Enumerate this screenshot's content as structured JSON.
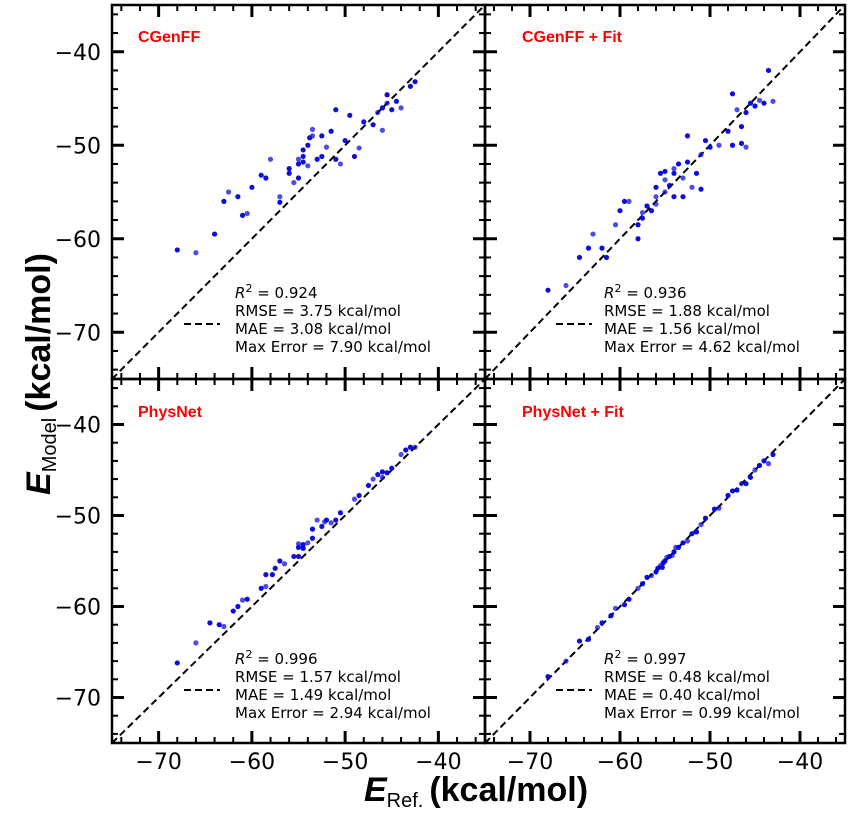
{
  "chart_data": {
    "type": "scatter",
    "xlabel": {
      "symbol": "E",
      "subscript": "Ref.",
      "unit": "(kcal/mol)"
    },
    "ylabel": {
      "symbol": "E",
      "subscript": "Model",
      "unit": "(kcal/mol)"
    },
    "xlim": [
      -75,
      -35
    ],
    "ylim": [
      -75,
      -35
    ],
    "x_ticks": [
      -70,
      -60,
      -50,
      -40
    ],
    "y_ticks": [
      -70,
      -60,
      -50,
      -40
    ],
    "reference_line": "y = x (dashed)",
    "point_color": "#0000e0",
    "title_color": "#ff0000",
    "panels": [
      {
        "title": "CGenFF",
        "stats": {
          "r2_label": "R",
          "r2_exp": "2",
          "r2_value": " = 0.924",
          "rmse": "RMSE = 3.75 kcal/mol",
          "mae": "MAE = 3.08 kcal/mol",
          "max_error": "Max Error = 7.90 kcal/mol"
        },
        "points": [
          [
            -68,
            -61.2
          ],
          [
            -66,
            -61.5
          ],
          [
            -64,
            -59.5
          ],
          [
            -63,
            -56
          ],
          [
            -62.5,
            -55
          ],
          [
            -61.5,
            -55.5
          ],
          [
            -61,
            -57.5
          ],
          [
            -60.5,
            -57.3
          ],
          [
            -60,
            -54.5
          ],
          [
            -59,
            -53.2
          ],
          [
            -58,
            -51.5
          ],
          [
            -58.5,
            -53.5
          ],
          [
            -57,
            -56.1
          ],
          [
            -57,
            -55.5
          ],
          [
            -56,
            -53
          ],
          [
            -56,
            -52.5
          ],
          [
            -55.5,
            -54
          ],
          [
            -55,
            -53.5
          ],
          [
            -55,
            -52
          ],
          [
            -55,
            -51.5
          ],
          [
            -54.5,
            -51.2
          ],
          [
            -54.5,
            -50.5
          ],
          [
            -54,
            -52.2
          ],
          [
            -54,
            -50
          ],
          [
            -53.8,
            -49.2
          ],
          [
            -53.5,
            -48.3
          ],
          [
            -53,
            -51.5
          ],
          [
            -52.5,
            -51.2
          ],
          [
            -52,
            -50.2
          ],
          [
            -51.5,
            -48.5
          ],
          [
            -51,
            -51.5
          ],
          [
            -50.5,
            -52
          ],
          [
            -50,
            -49.5
          ],
          [
            -49.5,
            -46.8
          ],
          [
            -48.5,
            -50.3
          ],
          [
            -48,
            -47.5
          ],
          [
            -47,
            -47.8
          ],
          [
            -46.5,
            -46.5
          ],
          [
            -46,
            -46
          ],
          [
            -45.5,
            -44.6
          ],
          [
            -45.5,
            -45.5
          ],
          [
            -45,
            -46.2
          ],
          [
            -44.5,
            -45.3
          ],
          [
            -44,
            -46
          ],
          [
            -43,
            -43.7
          ],
          [
            -42.5,
            -43.2
          ],
          [
            -46,
            -48.4
          ],
          [
            -51,
            -46.2
          ],
          [
            -52.5,
            -49
          ],
          [
            -53.5,
            -49
          ],
          [
            -49,
            -51.2
          ],
          [
            -54.5,
            -51.8
          ]
        ]
      },
      {
        "title": "CGenFF + Fit",
        "stats": {
          "r2_label": "R",
          "r2_exp": "2",
          "r2_value": " = 0.936",
          "rmse": "RMSE = 1.88 kcal/mol",
          "mae": "MAE = 1.56 kcal/mol",
          "max_error": "Max Error = 4.62 kcal/mol"
        },
        "points": [
          [
            -68,
            -65.5
          ],
          [
            -66,
            -65
          ],
          [
            -64.5,
            -62
          ],
          [
            -63.5,
            -61
          ],
          [
            -63,
            -59.5
          ],
          [
            -62,
            -61
          ],
          [
            -61.5,
            -62
          ],
          [
            -60.5,
            -58.5
          ],
          [
            -60,
            -57
          ],
          [
            -59.5,
            -56
          ],
          [
            -59,
            -56
          ],
          [
            -58,
            -58.5
          ],
          [
            -58,
            -60
          ],
          [
            -57.5,
            -57.2
          ],
          [
            -57,
            -56.5
          ],
          [
            -56.5,
            -57
          ],
          [
            -56,
            -55.5
          ],
          [
            -56,
            -54.5
          ],
          [
            -55.5,
            -53
          ],
          [
            -55,
            -55
          ],
          [
            -55,
            -52.8
          ],
          [
            -54.5,
            -54.3
          ],
          [
            -54,
            -52.5
          ],
          [
            -54,
            -55.5
          ],
          [
            -53.5,
            -52
          ],
          [
            -53,
            -53.5
          ],
          [
            -53,
            -55.5
          ],
          [
            -52.5,
            -51.8
          ],
          [
            -52,
            -54.5
          ],
          [
            -51.5,
            -53
          ],
          [
            -51,
            -54.7
          ],
          [
            -51,
            -51
          ],
          [
            -50.5,
            -49.5
          ],
          [
            -50,
            -50.2
          ],
          [
            -49,
            -50
          ],
          [
            -48,
            -48.5
          ],
          [
            -47.5,
            -50
          ],
          [
            -47,
            -46.2
          ],
          [
            -46.5,
            -49.8
          ],
          [
            -46,
            -46.5
          ],
          [
            -46,
            -50.2
          ],
          [
            -45.5,
            -45.5
          ],
          [
            -45,
            -45.8
          ],
          [
            -44.5,
            -45.2
          ],
          [
            -44,
            -45.5
          ],
          [
            -43.5,
            -42
          ],
          [
            -43,
            -45.3
          ],
          [
            -47.5,
            -44.5
          ],
          [
            -52.5,
            -49
          ],
          [
            -56,
            -56.3
          ],
          [
            -57.5,
            -57.8
          ],
          [
            -46.5,
            -48
          ],
          [
            -55,
            -53.7
          ],
          [
            -54,
            -53
          ]
        ]
      },
      {
        "title": "PhysNet",
        "stats": {
          "r2_label": "R",
          "r2_exp": "2",
          "r2_value": " = 0.996",
          "rmse": "RMSE = 1.57 kcal/mol",
          "mae": "MAE = 1.49 kcal/mol",
          "max_error": "Max Error = 2.94 kcal/mol"
        },
        "points": [
          [
            -68,
            -66.2
          ],
          [
            -66,
            -64
          ],
          [
            -64.5,
            -61.8
          ],
          [
            -63.5,
            -62
          ],
          [
            -63,
            -62.2
          ],
          [
            -62,
            -60.5
          ],
          [
            -61.5,
            -60
          ],
          [
            -61,
            -59.3
          ],
          [
            -60.5,
            -59.2
          ],
          [
            -59,
            -58
          ],
          [
            -58.5,
            -57.8
          ],
          [
            -57.5,
            -55.8
          ],
          [
            -57,
            -55
          ],
          [
            -56.5,
            -55.3
          ],
          [
            -55.5,
            -54.5
          ],
          [
            -55,
            -53.5
          ],
          [
            -55,
            -53.1
          ],
          [
            -54.5,
            -53.2
          ],
          [
            -54.5,
            -53.6
          ],
          [
            -54,
            -53
          ],
          [
            -53.5,
            -52.5
          ],
          [
            -53.5,
            -51.5
          ],
          [
            -53,
            -50.5
          ],
          [
            -52.5,
            -51.2
          ],
          [
            -52,
            -50.5
          ],
          [
            -51.5,
            -50.8
          ],
          [
            -51,
            -50.5
          ],
          [
            -50.5,
            -49.7
          ],
          [
            -49,
            -48.2
          ],
          [
            -48.5,
            -47.8
          ],
          [
            -47.5,
            -46.7
          ],
          [
            -47,
            -46
          ],
          [
            -46.5,
            -45.5
          ],
          [
            -46,
            -45.2
          ],
          [
            -46,
            -45.8
          ],
          [
            -45.5,
            -45.3
          ],
          [
            -45,
            -44.8
          ],
          [
            -44,
            -43.3
          ],
          [
            -43.5,
            -42.8
          ],
          [
            -43,
            -42.5
          ],
          [
            -42.5,
            -42.5
          ],
          [
            -58.5,
            -56.5
          ],
          [
            -57.8,
            -56.5
          ],
          [
            -52.2,
            -50.7
          ],
          [
            -55,
            -54.5
          ]
        ]
      },
      {
        "title": "PhysNet + Fit",
        "stats": {
          "r2_label": "R",
          "r2_exp": "2",
          "r2_value": " = 0.997",
          "rmse": "RMSE = 0.48 kcal/mol",
          "mae": "MAE = 0.40 kcal/mol",
          "max_error": "Max Error = 0.99 kcal/mol"
        },
        "points": [
          [
            -68,
            -67.7
          ],
          [
            -66,
            -66
          ],
          [
            -64.5,
            -63.8
          ],
          [
            -63.5,
            -63.6
          ],
          [
            -62.5,
            -62.3
          ],
          [
            -62,
            -61.8
          ],
          [
            -61,
            -61
          ],
          [
            -60.5,
            -60.2
          ],
          [
            -59.5,
            -59.8
          ],
          [
            -59,
            -59.2
          ],
          [
            -58,
            -58
          ],
          [
            -57.5,
            -57.5
          ],
          [
            -57,
            -56.8
          ],
          [
            -56.5,
            -56.6
          ],
          [
            -56,
            -56.2
          ],
          [
            -55.8,
            -55.8
          ],
          [
            -55.5,
            -55.5
          ],
          [
            -55.2,
            -55.2
          ],
          [
            -55,
            -55
          ],
          [
            -54.8,
            -54.6
          ],
          [
            -54.5,
            -54.5
          ],
          [
            -54,
            -54
          ],
          [
            -53.8,
            -53.5
          ],
          [
            -53.5,
            -53.5
          ],
          [
            -53,
            -53
          ],
          [
            -52.5,
            -52.8
          ],
          [
            -52,
            -52
          ],
          [
            -51.5,
            -51.8
          ],
          [
            -51,
            -51
          ],
          [
            -50.5,
            -50.3
          ],
          [
            -49.5,
            -49.3
          ],
          [
            -49,
            -49.2
          ],
          [
            -47.5,
            -47.3
          ],
          [
            -47,
            -47.2
          ],
          [
            -46.5,
            -46.5
          ],
          [
            -46,
            -46.5
          ],
          [
            -45.5,
            -45.8
          ],
          [
            -45,
            -45
          ],
          [
            -44.5,
            -44.5
          ],
          [
            -44,
            -44
          ],
          [
            -43.5,
            -44.3
          ],
          [
            -43,
            -43.3
          ],
          [
            -55.3,
            -55.7
          ],
          [
            -54.2,
            -54.4
          ],
          [
            -48,
            -47.8
          ]
        ]
      }
    ]
  }
}
